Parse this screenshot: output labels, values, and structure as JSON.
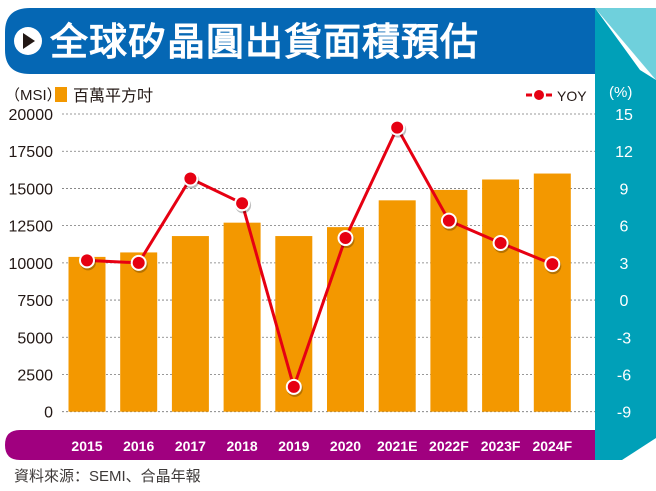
{
  "chart_data": {
    "type": "bar+line",
    "title": "全球矽晶圓出貨面積預估",
    "categories": [
      "2015",
      "2016",
      "2017",
      "2018",
      "2019",
      "2020",
      "2021E",
      "2022F",
      "2023F",
      "2024F"
    ],
    "series": [
      {
        "name": "百萬平方吋",
        "axis": "left",
        "kind": "bar",
        "values": [
          10400,
          10700,
          11800,
          12700,
          11800,
          12400,
          14200,
          14900,
          15600,
          16000
        ]
      },
      {
        "name": "YOY",
        "axis": "right",
        "kind": "line",
        "values": [
          3.2,
          3.0,
          9.8,
          7.8,
          -7.0,
          5.0,
          13.9,
          6.4,
          4.6,
          2.9
        ]
      }
    ],
    "ylabel": "（MSI）",
    "ylabel_right": "(%)",
    "ylim": [
      0,
      20000
    ],
    "yticks": [
      "20000",
      "17500",
      "15000",
      "12500",
      "10000",
      "7500",
      "5000",
      "2500",
      "0"
    ],
    "ylim_right": [
      -9,
      15
    ],
    "yticks_right": [
      "15",
      "12",
      "9",
      "6",
      "3",
      "0",
      "-3",
      "-6",
      "-9"
    ],
    "grid": true,
    "legend": "top",
    "source": "資料來源：SEMI、合晶年報",
    "colors": {
      "bar": "#f39800",
      "line": "#e60012",
      "title_bg": "#0567b4",
      "axis_band": "#a0007f",
      "right_panel": "#00a0b8"
    }
  }
}
